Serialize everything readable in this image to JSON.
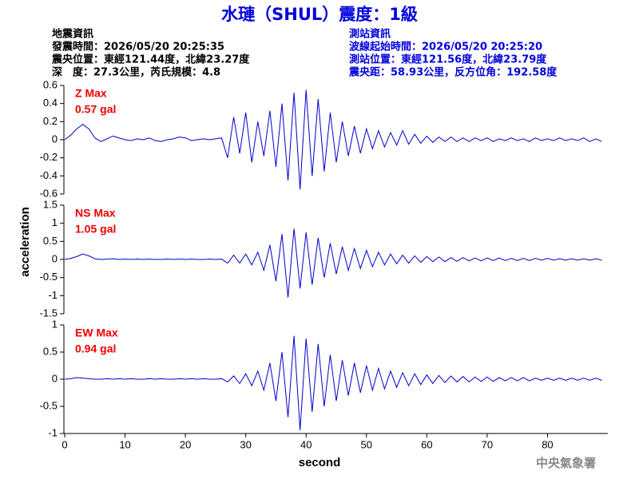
{
  "header": {
    "title": "水璉（SHUL）震度：1級",
    "left": [
      "地震資訊",
      "發震時間：2026/05/20 20:25:35",
      "震央位置：東經121.44度，北緯23.27度",
      "深　度：27.3公里，芮氏規模：4.8"
    ],
    "right": [
      "測站資訊",
      "波線起始時間：2026/05/20 20:25:20",
      "測站位置：東經121.56度，北緯23.79度",
      "震央距：58.93公里，反方位角：192.58度"
    ]
  },
  "y_label": "acceleration",
  "x_label": "second",
  "footer": "中央氣象署",
  "chart_data": [
    {
      "type": "line",
      "label": "Z Max",
      "max_label": "0.57 gal",
      "color": "#0000cc",
      "label_color": "#ee0000",
      "xlim": [
        0,
        90
      ],
      "ylim": [
        -0.6,
        0.6
      ],
      "yticks": [
        0.6,
        0.4,
        0.2,
        0,
        -0.2,
        -0.4,
        -0.6
      ],
      "x": [
        0,
        1,
        2,
        3,
        4,
        5,
        6,
        7,
        8,
        9,
        10,
        11,
        12,
        13,
        14,
        15,
        16,
        17,
        18,
        19,
        20,
        21,
        22,
        23,
        24,
        25,
        26,
        27,
        28,
        29,
        30,
        31,
        32,
        33,
        34,
        35,
        36,
        37,
        38,
        39,
        40,
        41,
        42,
        43,
        44,
        45,
        46,
        47,
        48,
        49,
        50,
        51,
        52,
        53,
        54,
        55,
        56,
        57,
        58,
        59,
        60,
        61,
        62,
        63,
        64,
        65,
        66,
        67,
        68,
        69,
        70,
        71,
        72,
        73,
        74,
        75,
        76,
        77,
        78,
        79,
        80,
        81,
        82,
        83,
        84,
        85,
        86,
        87,
        88,
        89
      ],
      "values": [
        0,
        0.05,
        0.12,
        0.17,
        0.12,
        0.02,
        -0.02,
        0.01,
        0.04,
        0.02,
        0,
        -0.01,
        0.01,
        0,
        0.02,
        -0.01,
        -0.02,
        0,
        0.01,
        0.03,
        0.02,
        -0.01,
        0,
        0.01,
        0,
        0.01,
        0.02,
        -0.2,
        0.25,
        -0.15,
        0.3,
        -0.25,
        0.2,
        -0.18,
        0.32,
        -0.3,
        0.4,
        -0.45,
        0.52,
        -0.55,
        0.55,
        -0.4,
        0.45,
        -0.35,
        0.3,
        -0.25,
        0.2,
        -0.18,
        0.15,
        -0.15,
        0.12,
        -0.1,
        0.1,
        -0.08,
        0.08,
        -0.06,
        0.1,
        -0.05,
        0.06,
        -0.04,
        0.04,
        -0.03,
        0.03,
        -0.02,
        0.03,
        -0.02,
        0.02,
        -0.02,
        0.02,
        -0.01,
        0.02,
        -0.02,
        0.01,
        -0.01,
        0.02,
        -0.01,
        0.01,
        -0.02,
        0.02,
        -0.01,
        0.01,
        -0.01,
        0.02,
        -0.01,
        0.01,
        -0.01,
        0.02,
        -0.02,
        0.01,
        -0.02
      ]
    },
    {
      "type": "line",
      "label": "NS Max",
      "max_label": "1.05 gal",
      "color": "#0000cc",
      "label_color": "#ee0000",
      "xlim": [
        0,
        90
      ],
      "ylim": [
        -1.5,
        1.5
      ],
      "yticks": [
        1.5,
        1,
        0.5,
        0,
        -0.5,
        -1,
        -1.5
      ],
      "x": [
        0,
        1,
        2,
        3,
        4,
        5,
        6,
        7,
        8,
        9,
        10,
        11,
        12,
        13,
        14,
        15,
        16,
        17,
        18,
        19,
        20,
        21,
        22,
        23,
        24,
        25,
        26,
        27,
        28,
        29,
        30,
        31,
        32,
        33,
        34,
        35,
        36,
        37,
        38,
        39,
        40,
        41,
        42,
        43,
        44,
        45,
        46,
        47,
        48,
        49,
        50,
        51,
        52,
        53,
        54,
        55,
        56,
        57,
        58,
        59,
        60,
        61,
        62,
        63,
        64,
        65,
        66,
        67,
        68,
        69,
        70,
        71,
        72,
        73,
        74,
        75,
        76,
        77,
        78,
        79,
        80,
        81,
        82,
        83,
        84,
        85,
        86,
        87,
        88,
        89
      ],
      "values": [
        0,
        0.03,
        0.08,
        0.15,
        0.1,
        0.02,
        0,
        0.01,
        0.02,
        0,
        0.01,
        0,
        0.01,
        0,
        0.01,
        0,
        0,
        0.01,
        0,
        0.01,
        0,
        0.01,
        0,
        0,
        0.01,
        0,
        0.01,
        -0.1,
        0.12,
        -0.1,
        0.15,
        -0.15,
        0.2,
        -0.3,
        0.4,
        -0.6,
        0.7,
        -1.05,
        0.85,
        -0.8,
        0.75,
        -0.7,
        0.6,
        -0.5,
        0.45,
        -0.4,
        0.35,
        -0.3,
        0.3,
        -0.25,
        0.25,
        -0.2,
        0.2,
        -0.15,
        0.15,
        -0.12,
        0.12,
        -0.1,
        0.1,
        -0.08,
        0.08,
        -0.06,
        0.07,
        -0.06,
        0.05,
        -0.05,
        0.05,
        -0.04,
        0.04,
        -0.04,
        0.04,
        -0.03,
        0.04,
        -0.03,
        0.03,
        -0.03,
        0.03,
        -0.03,
        0.03,
        -0.02,
        0.03,
        -0.02,
        0.02,
        -0.02,
        0.02,
        -0.02,
        0.02,
        -0.02,
        0.02,
        -0.02
      ]
    },
    {
      "type": "line",
      "label": "EW Max",
      "max_label": "0.94 gal",
      "color": "#0000cc",
      "label_color": "#ee0000",
      "xlim": [
        0,
        90
      ],
      "ylim": [
        -1,
        1
      ],
      "yticks": [
        1,
        0.5,
        0,
        -0.5,
        -1
      ],
      "xticks": [
        0,
        10,
        20,
        30,
        40,
        50,
        60,
        70,
        80
      ],
      "x": [
        0,
        1,
        2,
        3,
        4,
        5,
        6,
        7,
        8,
        9,
        10,
        11,
        12,
        13,
        14,
        15,
        16,
        17,
        18,
        19,
        20,
        21,
        22,
        23,
        24,
        25,
        26,
        27,
        28,
        29,
        30,
        31,
        32,
        33,
        34,
        35,
        36,
        37,
        38,
        39,
        40,
        41,
        42,
        43,
        44,
        45,
        46,
        47,
        48,
        49,
        50,
        51,
        52,
        53,
        54,
        55,
        56,
        57,
        58,
        59,
        60,
        61,
        62,
        63,
        64,
        65,
        66,
        67,
        68,
        69,
        70,
        71,
        72,
        73,
        74,
        75,
        76,
        77,
        78,
        79,
        80,
        81,
        82,
        83,
        84,
        85,
        86,
        87,
        88,
        89
      ],
      "values": [
        0,
        0.01,
        0.03,
        0.02,
        0.01,
        0,
        0,
        0.01,
        0,
        0.01,
        0,
        0.01,
        0,
        0,
        0.01,
        0,
        0.01,
        0,
        0,
        0.01,
        0,
        0.01,
        0,
        0.01,
        0,
        0,
        0.01,
        -0.05,
        0.06,
        -0.08,
        0.1,
        -0.12,
        0.15,
        -0.2,
        0.3,
        -0.4,
        0.5,
        -0.7,
        0.8,
        -0.94,
        0.75,
        -0.6,
        0.65,
        -0.5,
        0.45,
        -0.4,
        0.35,
        -0.3,
        0.3,
        -0.25,
        0.25,
        -0.2,
        0.2,
        -0.18,
        0.15,
        -0.15,
        0.12,
        -0.12,
        0.1,
        -0.1,
        0.08,
        -0.08,
        0.07,
        -0.06,
        0.06,
        -0.05,
        0.05,
        -0.05,
        0.04,
        -0.04,
        0.04,
        -0.04,
        0.03,
        -0.03,
        0.03,
        -0.03,
        0.03,
        -0.03,
        0.02,
        -0.02,
        0.02,
        -0.02,
        0.02,
        -0.02,
        0.02,
        -0.02,
        0.02,
        -0.02,
        0.02,
        -0.02
      ]
    }
  ]
}
